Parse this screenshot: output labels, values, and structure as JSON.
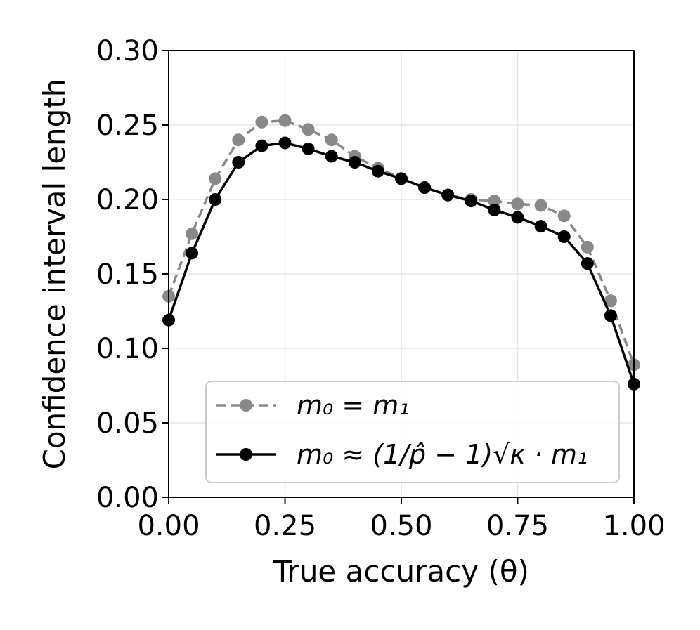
{
  "chart_data": {
    "type": "line",
    "xlabel": "True accuracy (θ)",
    "ylabel": "Confidence interval length",
    "xlim": [
      0.0,
      1.0
    ],
    "ylim": [
      0.0,
      0.3
    ],
    "x_ticks": [
      "0.00",
      "0.25",
      "0.50",
      "0.75",
      "1.00"
    ],
    "y_ticks": [
      "0.00",
      "0.05",
      "0.10",
      "0.15",
      "0.20",
      "0.25",
      "0.30"
    ],
    "grid": true,
    "legend_position": "lower-right",
    "x": [
      0.0,
      0.05,
      0.1,
      0.15,
      0.2,
      0.25,
      0.3,
      0.35,
      0.4,
      0.45,
      0.5,
      0.55,
      0.6,
      0.65,
      0.7,
      0.75,
      0.8,
      0.85,
      0.9,
      0.95,
      1.0
    ],
    "series": [
      {
        "name": "m0 = m1",
        "legend_label": "m₀ = m₁",
        "color": "#888888",
        "line_style": "dashed",
        "values": [
          0.135,
          0.177,
          0.214,
          0.24,
          0.252,
          0.253,
          0.247,
          0.24,
          0.229,
          0.221,
          0.214,
          0.208,
          0.203,
          0.2,
          0.199,
          0.197,
          0.196,
          0.189,
          0.168,
          0.132,
          0.089
        ]
      },
      {
        "name": "m0 ≈ (1/p̂ − 1)√κ · m1",
        "legend_label": "m₀ ≈ (1/p̂ − 1)√κ · m₁",
        "color": "#000000",
        "line_style": "solid",
        "values": [
          0.119,
          0.164,
          0.2,
          0.225,
          0.236,
          0.238,
          0.234,
          0.229,
          0.225,
          0.219,
          0.214,
          0.208,
          0.203,
          0.199,
          0.193,
          0.188,
          0.182,
          0.175,
          0.157,
          0.122,
          0.076
        ]
      }
    ]
  }
}
